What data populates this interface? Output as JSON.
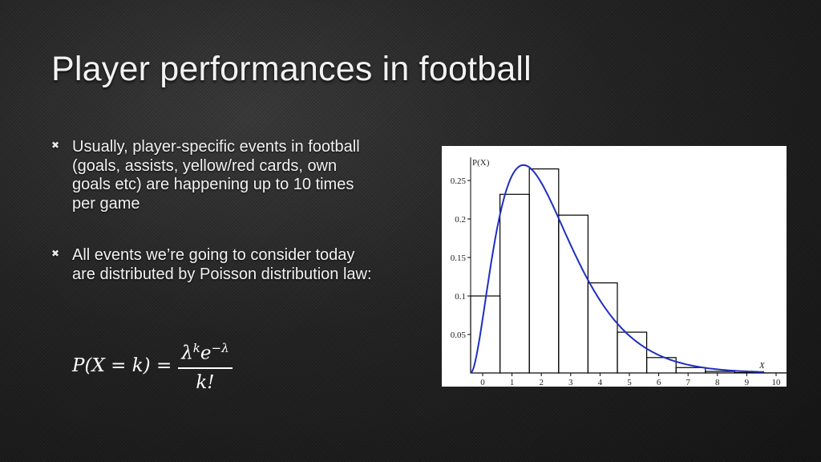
{
  "slide": {
    "title": "Player performances in football",
    "bullets": [
      "Usually, player-specific events in football (goals, assists, yellow/red cards, own goals etc) are happening up to 10 times per game",
      "All events we’re going to consider today are distributed by Poisson distribution law:"
    ],
    "formula": {
      "lhs": "P(X = k) = ",
      "num_base": "λ",
      "num_exp1": "k",
      "num_mid": "e",
      "num_exp2": "−λ",
      "den": "k!"
    }
  },
  "chart_data": {
    "type": "bar",
    "ylabel": "P(X)",
    "xlabel": "X",
    "categories": [
      "0",
      "1",
      "2",
      "3",
      "4",
      "5",
      "6",
      "7",
      "8",
      "9",
      "10"
    ],
    "x": [
      0,
      1,
      2,
      3,
      4,
      5,
      6,
      7,
      8,
      9,
      10
    ],
    "values": [
      0.1,
      0.232,
      0.265,
      0.205,
      0.117,
      0.053,
      0.02,
      0.007,
      0.002,
      0.0005,
      0.0001
    ],
    "curve": {
      "type": "line",
      "color": "#1f2fbf",
      "peak": [
        1.8,
        0.27
      ]
    },
    "xlim": [
      0,
      10
    ],
    "ylim": [
      0,
      0.28
    ],
    "yticks": [
      0.05,
      0.1,
      0.15,
      0.2,
      0.25
    ],
    "ytick_labels": [
      "0.05",
      "0.1",
      "0.15",
      "0.2",
      "0.25"
    ],
    "xtick_labels": [
      "0",
      "1",
      "2",
      "3",
      "4",
      "5",
      "6",
      "7",
      "8",
      "9",
      "10"
    ],
    "grid": false,
    "colors": {
      "bars": "#000000",
      "curve": "#1f2fbf"
    }
  }
}
